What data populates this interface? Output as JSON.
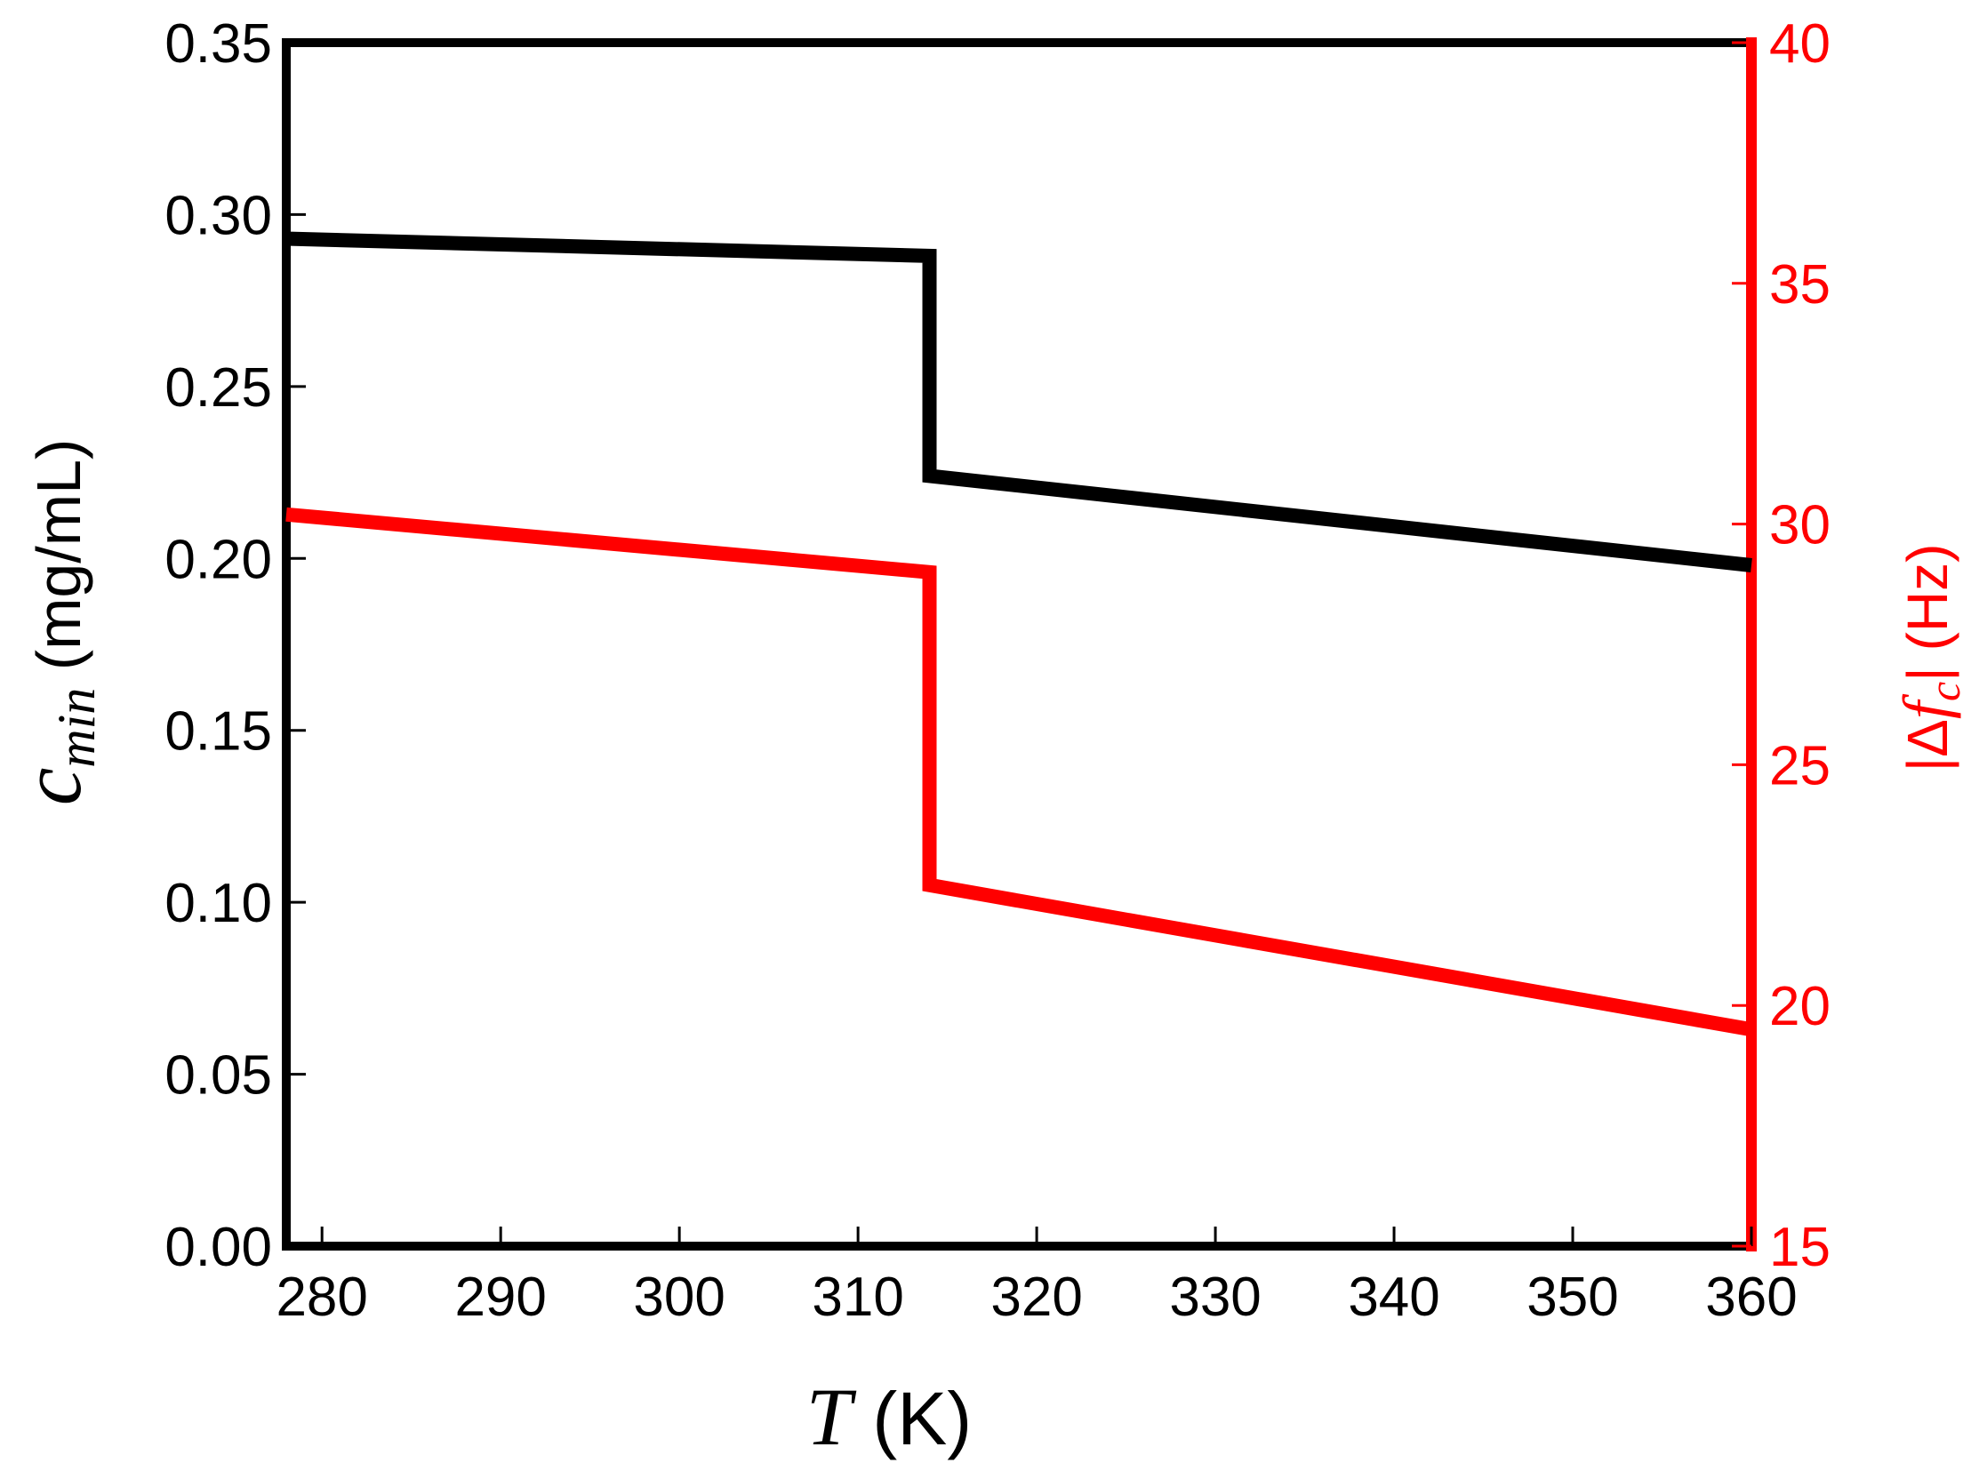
{
  "chart_data": {
    "type": "line",
    "xlabel": {
      "symbol": "T",
      "unit": " (K)"
    },
    "ylabel_left": {
      "base": "c",
      "subscript": "min",
      "unit": " (mg/mL)"
    },
    "ylabel_right": {
      "pre": "|Δ",
      "symbol": "f",
      "subscript": "c",
      "post": "| (Hz)"
    },
    "xlim": [
      278,
      360
    ],
    "ylim_left": [
      0,
      0.35
    ],
    "ylim_right": [
      15,
      40
    ],
    "x_ticks": [
      280,
      290,
      300,
      310,
      320,
      330,
      340,
      350,
      360
    ],
    "x_tick_labels": [
      "280",
      "290",
      "300",
      "310",
      "320",
      "330",
      "340",
      "350",
      "360"
    ],
    "y_left_ticks": [
      0,
      0.05,
      0.1,
      0.15,
      0.2,
      0.25,
      0.3,
      0.35
    ],
    "y_left_tick_labels": [
      "0.00",
      "0.05",
      "0.10",
      "0.15",
      "0.20",
      "0.25",
      "0.30",
      "0.35"
    ],
    "y_right_ticks": [
      15,
      20,
      25,
      30,
      35,
      40
    ],
    "y_right_tick_labels": [
      "15",
      "20",
      "25",
      "30",
      "35",
      "40"
    ],
    "grid": false,
    "legend": "none",
    "series": [
      {
        "axis": "left",
        "color": "#000000",
        "points": [
          [
            278,
            0.293
          ],
          [
            314,
            0.288
          ],
          [
            314,
            0.224
          ],
          [
            360,
            0.198
          ]
        ]
      },
      {
        "axis": "right",
        "color": "#ff0000",
        "points": [
          [
            278,
            30.2
          ],
          [
            314,
            29.0
          ],
          [
            314,
            22.5
          ],
          [
            360,
            19.5
          ]
        ]
      }
    ],
    "colors": {
      "left_axis": "#000000",
      "right_axis": "#ff0000"
    }
  }
}
